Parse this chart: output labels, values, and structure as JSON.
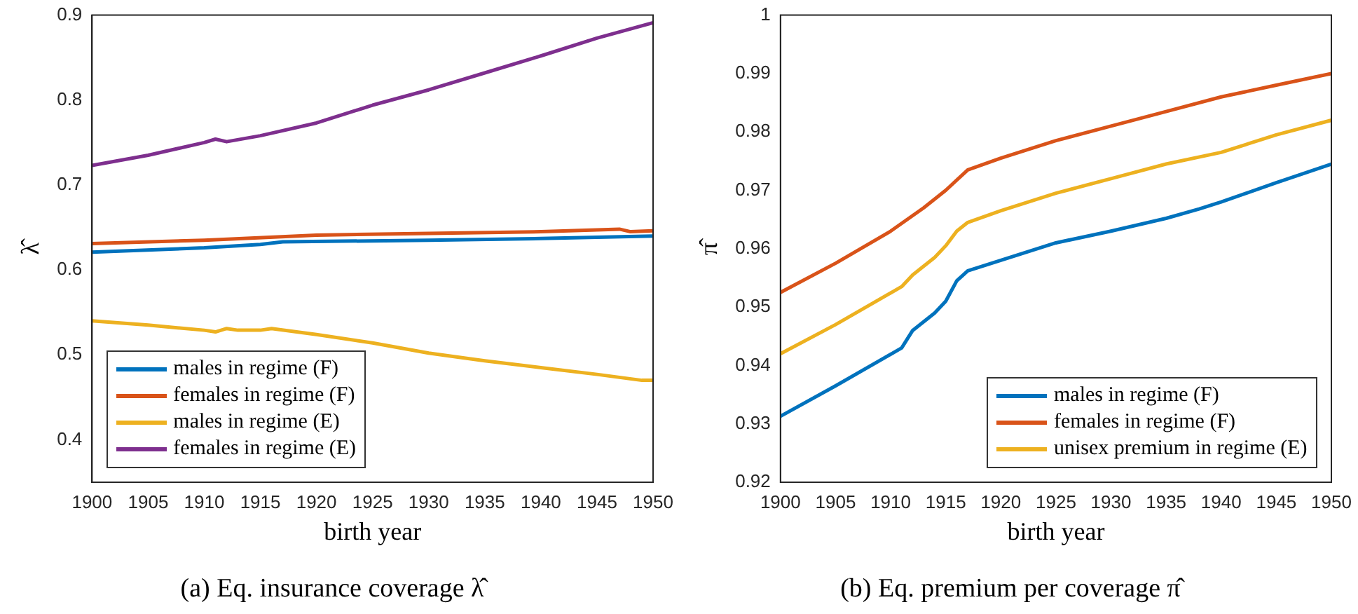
{
  "chart_data": [
    {
      "type": "line",
      "title": "(a) Eq. insurance coverage λ̂",
      "xlabel": "birth year",
      "ylabel": "λ̂",
      "xlim": [
        1900,
        1950
      ],
      "xticks": [
        1900,
        1905,
        1910,
        1915,
        1920,
        1925,
        1930,
        1935,
        1940,
        1945,
        1950
      ],
      "ylim": [
        0.35,
        0.9
      ],
      "yticks": [
        0.4,
        0.5,
        0.6,
        0.7,
        0.8,
        0.9
      ],
      "legend": "bottom left",
      "marker": "none",
      "line_style": "solid",
      "series": [
        {
          "name": "males in regime (F)",
          "color": "#0072bd",
          "x": [
            1900,
            1910,
            1915,
            1917,
            1930,
            1940,
            1950
          ],
          "values": [
            0.621,
            0.626,
            0.63,
            0.633,
            0.635,
            0.637,
            0.64
          ]
        },
        {
          "name": "females in regime (F)",
          "color": "#d95319",
          "x": [
            1900,
            1910,
            1920,
            1930,
            1940,
            1947,
            1948,
            1950
          ],
          "values": [
            0.631,
            0.635,
            0.641,
            0.643,
            0.645,
            0.648,
            0.645,
            0.646
          ]
        },
        {
          "name": "males in regime (E)",
          "color": "#edb120",
          "x": [
            1900,
            1905,
            1910,
            1911,
            1912,
            1913,
            1915,
            1916,
            1920,
            1925,
            1930,
            1935,
            1940,
            1945,
            1949,
            1950
          ],
          "values": [
            0.54,
            0.535,
            0.529,
            0.527,
            0.531,
            0.529,
            0.529,
            0.531,
            0.524,
            0.514,
            0.502,
            0.493,
            0.485,
            0.477,
            0.47,
            0.47
          ]
        },
        {
          "name": "females in regime (E)",
          "color": "#7e2f8e",
          "x": [
            1900,
            1905,
            1910,
            1911,
            1912,
            1915,
            1920,
            1925,
            1930,
            1935,
            1940,
            1945,
            1950
          ],
          "values": [
            0.723,
            0.735,
            0.75,
            0.754,
            0.751,
            0.758,
            0.773,
            0.794,
            0.812,
            0.832,
            0.852,
            0.873,
            0.891
          ]
        }
      ]
    },
    {
      "type": "line",
      "title": "(b) Eq. premium per coverage π̂",
      "xlabel": "birth year",
      "ylabel": "π̂",
      "xlim": [
        1900,
        1950
      ],
      "xticks": [
        1900,
        1905,
        1910,
        1915,
        1920,
        1925,
        1930,
        1935,
        1940,
        1945,
        1950
      ],
      "ylim": [
        0.92,
        1
      ],
      "yticks": [
        0.92,
        0.93,
        0.94,
        0.95,
        0.96,
        0.97,
        0.98,
        0.99,
        1
      ],
      "legend": "bottom right",
      "marker": "none",
      "line_style": "solid",
      "series": [
        {
          "name": "males in regime (F)",
          "color": "#0072bd",
          "x": [
            1900,
            1905,
            1911,
            1912,
            1914,
            1915,
            1916,
            1917,
            1920,
            1925,
            1930,
            1935,
            1938,
            1940,
            1945,
            1950
          ],
          "values": [
            0.9313,
            0.9365,
            0.943,
            0.946,
            0.949,
            0.951,
            0.9545,
            0.9562,
            0.958,
            0.961,
            0.963,
            0.9652,
            0.9668,
            0.968,
            0.9713,
            0.9745
          ]
        },
        {
          "name": "females in regime (F)",
          "color": "#d95319",
          "x": [
            1900,
            1905,
            1910,
            1913,
            1915,
            1917,
            1920,
            1925,
            1930,
            1935,
            1940,
            1945,
            1950
          ],
          "values": [
            0.9525,
            0.9575,
            0.963,
            0.967,
            0.97,
            0.9735,
            0.9755,
            0.9785,
            0.981,
            0.9835,
            0.986,
            0.988,
            0.99
          ]
        },
        {
          "name": "unisex premium in regime (E)",
          "color": "#edb120",
          "x": [
            1900,
            1905,
            1911,
            1912,
            1914,
            1915,
            1916,
            1917,
            1920,
            1925,
            1930,
            1935,
            1940,
            1945,
            1950
          ],
          "values": [
            0.942,
            0.947,
            0.9535,
            0.9555,
            0.9585,
            0.9605,
            0.963,
            0.9645,
            0.9665,
            0.9695,
            0.972,
            0.9745,
            0.9765,
            0.9795,
            0.982
          ]
        }
      ]
    }
  ]
}
